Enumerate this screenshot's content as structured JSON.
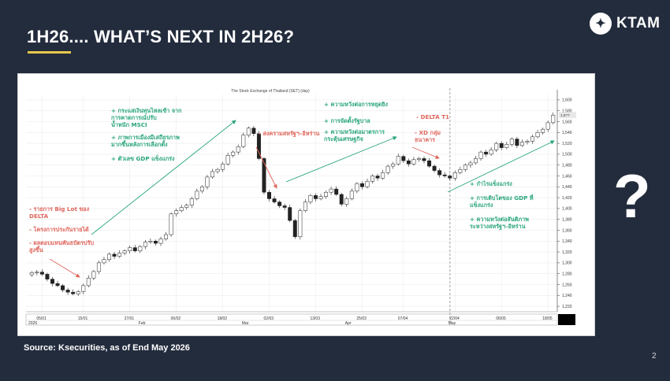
{
  "slide": {
    "title": "1H26.... WHAT’S NEXT IN 2H26?",
    "source": "Source: Ksecurities, as of End May 2026",
    "page_number": "2",
    "question_mark": "?"
  },
  "brand": {
    "logo_text": "KTAM",
    "logo_icon": "ktam-emblem-icon"
  },
  "colors": {
    "background": "#232c3d",
    "accent_underline": "#e8c84a",
    "positive_note": "#2aa57e",
    "negative_note": "#e0665c",
    "candle_up": "#ffffff",
    "candle_down": "#222222"
  },
  "chart_data": {
    "type": "candlestick",
    "title": "The Stock Exchange of Thailand (SET) (day)",
    "price_marker": "1,5??",
    "y_ticks": [
      "1,600",
      "1,580",
      "1,560",
      "1,540",
      "1,520",
      "1,500",
      "1,480",
      "1,460",
      "1,440",
      "1,420",
      "1,400",
      "1,380",
      "1,360",
      "1,340",
      "1,320",
      "1,300",
      "1,280",
      "1,260",
      "1,240",
      "1,220"
    ],
    "ylim": [
      1210,
      1610
    ],
    "x_date_labels": [
      "05/01",
      "15/01",
      "27/01",
      "06/02",
      "18/02",
      "02/03",
      "13/03",
      "25/03",
      "07/04",
      "22/04",
      "06/05",
      "18/05"
    ],
    "x_period_labels": [
      "2026",
      "Feb",
      "Mar",
      "Apr",
      "May"
    ],
    "closes": [
      1282,
      1283,
      1279,
      1270,
      1262,
      1258,
      1250,
      1246,
      1243,
      1247,
      1258,
      1272,
      1284,
      1300,
      1306,
      1316,
      1312,
      1318,
      1322,
      1328,
      1322,
      1330,
      1338,
      1340,
      1336,
      1344,
      1352,
      1390,
      1396,
      1402,
      1406,
      1418,
      1432,
      1440,
      1458,
      1468,
      1472,
      1482,
      1498,
      1504,
      1514,
      1535,
      1548,
      1538,
      1492,
      1430,
      1418,
      1412,
      1405,
      1402,
      1378,
      1348,
      1396,
      1412,
      1424,
      1418,
      1422,
      1430,
      1436,
      1426,
      1408,
      1418,
      1432,
      1446,
      1440,
      1450,
      1460,
      1456,
      1466,
      1478,
      1482,
      1496,
      1488,
      1482,
      1490,
      1492,
      1488,
      1478,
      1470,
      1462,
      1460,
      1456,
      1466,
      1472,
      1480,
      1484,
      1492,
      1504,
      1500,
      1508,
      1520,
      1512,
      1518,
      1528,
      1516,
      1522,
      1524,
      1532,
      1540,
      1546,
      1558,
      1572
    ],
    "annotations_positive": [
      {
        "lines": [
          "+ กระแสเงินทุนไหลเข้า จาก",
          "การคาดการณ์ปรับ",
          "น้ำหนัก MSCI"
        ]
      },
      {
        "lines": [
          "+ ภาพการเมืองมีเสถียรภาพ",
          "มากขึ้นหลังการเลือกตั้ง"
        ]
      },
      {
        "lines": [
          "+ ตัวเลข GDP แข็งแกร่ง"
        ]
      },
      {
        "lines": [
          "+ ความหวังต่อการหยุดยิง"
        ]
      },
      {
        "lines": [
          "+ การจัดตั้งรัฐบาล"
        ]
      },
      {
        "lines": [
          "+ ความหวังต่อมาตรการ",
          "กระตุ้นเศรษฐกิจ"
        ]
      },
      {
        "lines": [
          "+ กำไรแข็งแกร่ง"
        ]
      },
      {
        "lines": [
          "+ การเติบโตของ GDP ที่",
          "แข็งแกร่ง"
        ]
      },
      {
        "lines": [
          "+ ความหวังต่อสันติภาพ",
          "ระหว่างสหรัฐฯ–อิหร่าน"
        ]
      }
    ],
    "annotations_negative": [
      {
        "lines": [
          "- รายการ Big Lot ของ",
          "DELTA"
        ]
      },
      {
        "lines": [
          "- โครงการประกันรายได้"
        ]
      },
      {
        "lines": [
          "- ผลตอบแทนพันธบัตรปรับ",
          "สูงขึ้น"
        ]
      },
      {
        "lines": [
          "- สงครามสหรัฐฯ–อิหร่าน"
        ]
      },
      {
        "lines": [
          "- DELTA T1"
        ]
      },
      {
        "lines": [
          "- XD กลุ่ม",
          "ธนาคาร"
        ]
      }
    ]
  }
}
